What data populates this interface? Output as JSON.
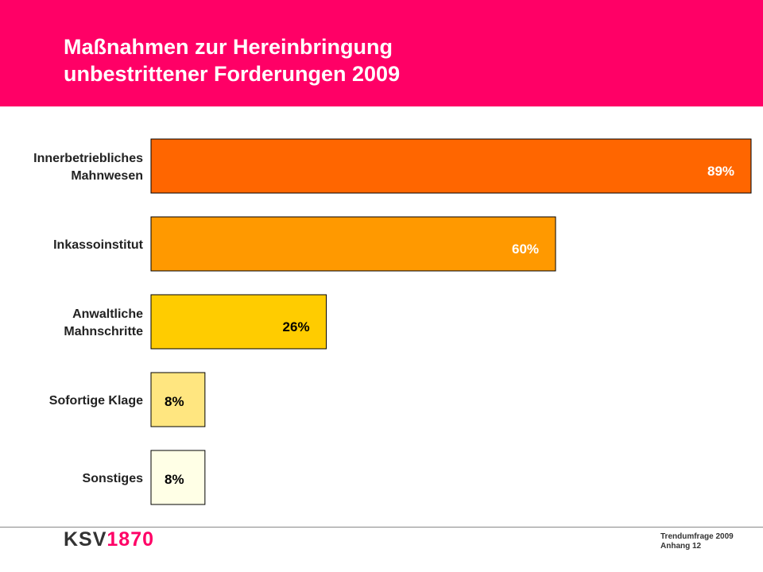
{
  "header": {
    "title_line1": "Maßnahmen zur Hereinbringung",
    "title_line2": "unbestrittener Forderungen 2009"
  },
  "chart_data": {
    "type": "bar",
    "orientation": "horizontal",
    "categories": [
      [
        "Innerbetriebliches",
        "Mahnwesen"
      ],
      [
        "Inkassoinstitut"
      ],
      [
        "Anwaltliche",
        "Mahnschritte"
      ],
      [
        "Sofortige Klage"
      ],
      [
        "Sonstiges"
      ]
    ],
    "values": [
      89,
      60,
      26,
      8,
      8
    ],
    "value_labels": [
      "89%",
      "60%",
      "26%",
      "8%",
      "8%"
    ],
    "colors": [
      "#ff6600",
      "#ff9900",
      "#ffcc00",
      "#ffe680",
      "#ffffe6"
    ],
    "xlim": [
      0,
      89
    ],
    "grid": false,
    "legend": "none"
  },
  "footer": {
    "logo_text": "KSV",
    "logo_number": "1870",
    "line1": "Trendumfrage 2009",
    "line2": "Anhang 12"
  }
}
